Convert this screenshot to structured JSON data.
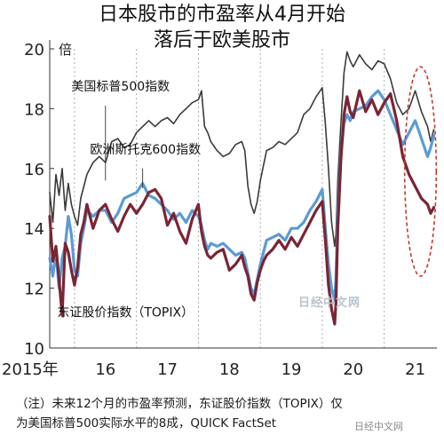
{
  "title_line1": "日本股市的市盈率从4月开始",
  "title_line2": "落后于欧美股市",
  "note_line1": "（注）未来12个月的市盈率预测，东证股价指数（TOPIX）仅",
  "note_line2": "为美国标普500实际水平的8成，QUICK FactSet",
  "watermark": "日经中文网",
  "corner_mark": "日经中文网",
  "chart_data": {
    "type": "line",
    "title": "日本股市的市盈率从4月开始落后于欧美股市",
    "ylabel": "倍",
    "ylim": [
      10,
      20
    ],
    "yticks": [
      10,
      12,
      14,
      16,
      18,
      20
    ],
    "xlim": [
      2015.6,
      2021.85
    ],
    "xtick_labels": [
      {
        "x": 2015.6,
        "label": "2015年"
      },
      {
        "x": 2016.5,
        "label": "16"
      },
      {
        "x": 2017.5,
        "label": "17"
      },
      {
        "x": 2018.5,
        "label": "18"
      },
      {
        "x": 2019.5,
        "label": "19"
      },
      {
        "x": 2020.5,
        "label": "20"
      },
      {
        "x": 2021.5,
        "label": "21"
      }
    ],
    "year_dividers": [
      2016,
      2017,
      2018,
      2019,
      2020,
      2021
    ],
    "highlight_ellipse": {
      "x_range": [
        2021.33,
        2021.84
      ],
      "y_range": [
        12.4,
        19.4
      ],
      "color": "#c0392b"
    },
    "series": [
      {
        "name": "美国标普500指数",
        "color": "#3a3a3a",
        "x": [
          2015.6,
          2015.65,
          2015.7,
          2015.75,
          2015.8,
          2015.85,
          2015.9,
          2015.95,
          2016.0,
          2016.05,
          2016.1,
          2016.15,
          2016.2,
          2016.3,
          2016.4,
          2016.5,
          2016.6,
          2016.7,
          2016.8,
          2016.9,
          2017.0,
          2017.1,
          2017.2,
          2017.3,
          2017.4,
          2017.5,
          2017.6,
          2017.7,
          2017.8,
          2017.9,
          2018.0,
          2018.05,
          2018.1,
          2018.15,
          2018.2,
          2018.3,
          2018.4,
          2018.5,
          2018.6,
          2018.7,
          2018.75,
          2018.8,
          2018.85,
          2018.9,
          2018.95,
          2019.0,
          2019.05,
          2019.1,
          2019.2,
          2019.3,
          2019.4,
          2019.5,
          2019.6,
          2019.7,
          2019.8,
          2019.9,
          2020.0,
          2020.05,
          2020.1,
          2020.15,
          2020.2,
          2020.22,
          2020.25,
          2020.3,
          2020.35,
          2020.4,
          2020.45,
          2020.5,
          2020.6,
          2020.7,
          2020.8,
          2020.9,
          2021.0,
          2021.1,
          2021.2,
          2021.3,
          2021.4,
          2021.5,
          2021.6,
          2021.7,
          2021.75,
          2021.8
        ],
        "y": [
          15.2,
          14.2,
          15.8,
          15.1,
          16.0,
          14.6,
          15.5,
          14.8,
          14.4,
          14.1,
          15.0,
          15.4,
          15.8,
          16.2,
          16.4,
          16.2,
          16.9,
          17.0,
          16.7,
          16.8,
          17.2,
          17.4,
          17.6,
          17.4,
          17.6,
          17.7,
          17.5,
          17.8,
          18.0,
          18.2,
          18.3,
          18.6,
          17.4,
          17.2,
          16.9,
          16.6,
          16.4,
          16.5,
          16.8,
          16.9,
          16.6,
          15.4,
          14.8,
          14.5,
          14.9,
          15.6,
          16.1,
          16.6,
          16.7,
          16.9,
          16.8,
          17.0,
          17.2,
          17.8,
          18.0,
          18.4,
          18.7,
          17.5,
          16.0,
          14.2,
          13.4,
          13.8,
          15.6,
          17.5,
          19.2,
          19.9,
          19.6,
          19.4,
          19.8,
          19.5,
          19.3,
          19.6,
          19.5,
          19.0,
          18.2,
          17.8,
          18.0,
          18.6,
          17.9,
          17.4,
          16.9,
          17.3
        ]
      },
      {
        "name": "欧洲斯托克600指数",
        "color": "#5b9bd5",
        "x": [
          2015.6,
          2015.65,
          2015.7,
          2015.75,
          2015.8,
          2015.85,
          2015.9,
          2015.95,
          2016.0,
          2016.05,
          2016.1,
          2016.15,
          2016.2,
          2016.3,
          2016.4,
          2016.5,
          2016.6,
          2016.7,
          2016.8,
          2016.9,
          2017.0,
          2017.1,
          2017.2,
          2017.3,
          2017.4,
          2017.5,
          2017.6,
          2017.7,
          2017.8,
          2017.9,
          2018.0,
          2018.05,
          2018.1,
          2018.15,
          2018.2,
          2018.3,
          2018.4,
          2018.5,
          2018.6,
          2018.7,
          2018.75,
          2018.8,
          2018.85,
          2018.9,
          2018.95,
          2019.0,
          2019.05,
          2019.1,
          2019.2,
          2019.3,
          2019.4,
          2019.5,
          2019.6,
          2019.7,
          2019.8,
          2019.9,
          2020.0,
          2020.05,
          2020.1,
          2020.15,
          2020.2,
          2020.22,
          2020.25,
          2020.3,
          2020.35,
          2020.4,
          2020.45,
          2020.5,
          2020.6,
          2020.7,
          2020.8,
          2020.9,
          2021.0,
          2021.1,
          2021.2,
          2021.3,
          2021.4,
          2021.5,
          2021.6,
          2021.7,
          2021.75,
          2021.8
        ],
        "y": [
          13.0,
          12.4,
          13.2,
          12.0,
          13.0,
          13.4,
          14.4,
          13.8,
          12.6,
          12.4,
          13.5,
          14.0,
          14.6,
          14.4,
          14.6,
          14.6,
          14.2,
          14.5,
          15.0,
          15.1,
          15.2,
          15.5,
          15.1,
          15.0,
          14.8,
          14.6,
          14.3,
          14.5,
          14.2,
          14.6,
          14.4,
          14.1,
          13.6,
          13.3,
          13.5,
          13.4,
          13.5,
          13.3,
          13.1,
          13.2,
          13.0,
          12.5,
          12.0,
          11.8,
          12.3,
          12.8,
          13.2,
          13.6,
          13.7,
          13.8,
          13.6,
          14.0,
          14.0,
          14.2,
          14.6,
          14.9,
          15.3,
          14.0,
          12.8,
          12.0,
          11.6,
          12.3,
          14.5,
          16.5,
          17.5,
          17.8,
          17.6,
          17.9,
          18.0,
          18.1,
          18.4,
          18.6,
          18.3,
          17.8,
          17.3,
          16.8,
          17.2,
          17.6,
          17.0,
          16.4,
          16.7,
          17.1
        ]
      },
      {
        "name": "东证股价指数（TOPIX）",
        "color": "#7b2434",
        "x": [
          2015.6,
          2015.65,
          2015.7,
          2015.75,
          2015.8,
          2015.85,
          2015.9,
          2015.95,
          2016.0,
          2016.05,
          2016.1,
          2016.15,
          2016.2,
          2016.3,
          2016.4,
          2016.5,
          2016.6,
          2016.7,
          2016.8,
          2016.9,
          2017.0,
          2017.1,
          2017.2,
          2017.3,
          2017.4,
          2017.5,
          2017.6,
          2017.7,
          2017.8,
          2017.9,
          2018.0,
          2018.05,
          2018.1,
          2018.15,
          2018.2,
          2018.3,
          2018.4,
          2018.5,
          2018.6,
          2018.7,
          2018.75,
          2018.8,
          2018.85,
          2018.9,
          2018.95,
          2019.0,
          2019.05,
          2019.1,
          2019.2,
          2019.3,
          2019.4,
          2019.5,
          2019.6,
          2019.7,
          2019.8,
          2019.9,
          2020.0,
          2020.05,
          2020.1,
          2020.15,
          2020.2,
          2020.22,
          2020.25,
          2020.3,
          2020.35,
          2020.4,
          2020.45,
          2020.5,
          2020.6,
          2020.7,
          2020.8,
          2020.9,
          2021.0,
          2021.1,
          2021.2,
          2021.3,
          2021.4,
          2021.5,
          2021.6,
          2021.7,
          2021.75,
          2021.8
        ],
        "y": [
          14.4,
          12.9,
          13.4,
          12.3,
          11.1,
          13.5,
          13.2,
          12.6,
          12.1,
          12.7,
          13.8,
          14.2,
          14.8,
          14.0,
          14.6,
          14.8,
          14.3,
          13.9,
          14.4,
          14.8,
          14.5,
          14.8,
          15.2,
          15.3,
          15.0,
          14.1,
          14.5,
          13.9,
          13.5,
          14.3,
          14.8,
          13.9,
          13.4,
          13.1,
          13.0,
          13.2,
          13.3,
          12.6,
          12.8,
          13.1,
          12.7,
          12.4,
          11.8,
          11.6,
          12.2,
          12.6,
          12.9,
          13.1,
          13.3,
          13.6,
          13.3,
          13.7,
          13.4,
          13.8,
          14.2,
          14.6,
          14.9,
          13.6,
          12.1,
          11.3,
          10.8,
          11.5,
          14.0,
          16.3,
          17.8,
          18.4,
          17.9,
          17.7,
          18.6,
          17.9,
          18.3,
          17.8,
          18.2,
          18.5,
          17.6,
          16.4,
          15.8,
          15.4,
          15.0,
          14.8,
          14.5,
          14.7
        ]
      }
    ],
    "annotations": [
      {
        "text": "美国标普500指数",
        "series": 0,
        "x": 2015.95,
        "y": 18.2
      },
      {
        "text": "欧洲斯托克600指数",
        "series": 1,
        "x": 2016.75,
        "y": 16.5
      },
      {
        "text": "东证股价指数（TOPIX）",
        "series": 2,
        "x": 2015.85,
        "y": 11.0
      }
    ]
  }
}
